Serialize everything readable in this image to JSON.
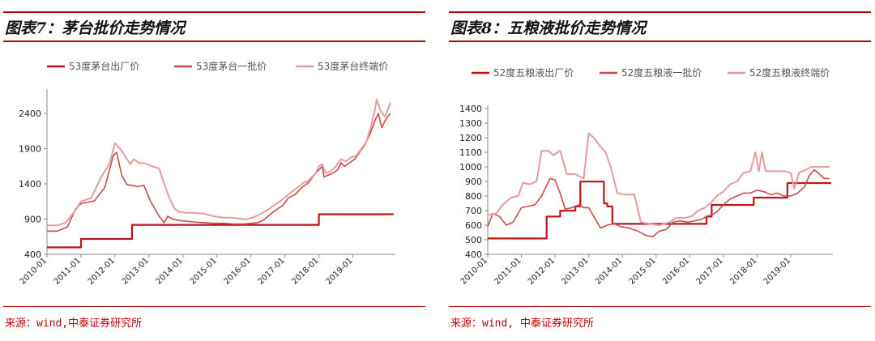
{
  "panels": [
    {
      "title": "图表7：茅台批价走势情况",
      "source": "来源：wind,中泰证券研究所"
    },
    {
      "title": "图表8：五粮液批价走势情况",
      "source": "来源：wind, 中泰证券研究所"
    }
  ],
  "chart_data": [
    {
      "type": "line",
      "title": "",
      "xlabel": "",
      "ylabel": "",
      "x_range": [
        2010.0,
        2020.25
      ],
      "ylim": [
        400,
        2700
      ],
      "yticks": [
        400,
        900,
        1400,
        1900,
        2400
      ],
      "xtick_labels": [
        "2010-01",
        "2011-01",
        "2012-01",
        "2013-01",
        "2014-01",
        "2015-01",
        "2016-01",
        "2017-01",
        "2018-01",
        "2019-01"
      ],
      "legend_position": "top",
      "grid": false,
      "series": [
        {
          "name": "53度茅台出厂价",
          "color": "#c0141a",
          "stroke_width": 2.2,
          "step": true,
          "points": [
            [
              2010.0,
              499
            ],
            [
              2011.0,
              619
            ],
            [
              2012.5,
              819
            ],
            [
              2018.0,
              969
            ],
            [
              2020.2,
              969
            ]
          ]
        },
        {
          "name": "53度茅台一批价",
          "color": "#cc4a4a",
          "stroke_width": 1.6,
          "step": false,
          "points": [
            [
              2010.0,
              730
            ],
            [
              2010.3,
              730
            ],
            [
              2010.6,
              790
            ],
            [
              2010.85,
              1050
            ],
            [
              2011.0,
              1120
            ],
            [
              2011.4,
              1160
            ],
            [
              2011.7,
              1350
            ],
            [
              2011.95,
              1800
            ],
            [
              2012.05,
              1850
            ],
            [
              2012.2,
              1520
            ],
            [
              2012.35,
              1390
            ],
            [
              2012.5,
              1380
            ],
            [
              2012.65,
              1360
            ],
            [
              2012.85,
              1380
            ],
            [
              2013.05,
              1150
            ],
            [
              2013.3,
              940
            ],
            [
              2013.45,
              850
            ],
            [
              2013.55,
              940
            ],
            [
              2013.7,
              900
            ],
            [
              2013.9,
              880
            ],
            [
              2014.1,
              870
            ],
            [
              2014.3,
              860
            ],
            [
              2014.6,
              850
            ],
            [
              2014.9,
              840
            ],
            [
              2015.2,
              840
            ],
            [
              2015.5,
              830
            ],
            [
              2015.8,
              830
            ],
            [
              2016.0,
              840
            ],
            [
              2016.2,
              850
            ],
            [
              2016.35,
              880
            ],
            [
              2016.5,
              940
            ],
            [
              2016.65,
              1000
            ],
            [
              2016.8,
              1050
            ],
            [
              2016.95,
              1100
            ],
            [
              2017.1,
              1200
            ],
            [
              2017.3,
              1250
            ],
            [
              2017.5,
              1350
            ],
            [
              2017.7,
              1420
            ],
            [
              2017.9,
              1550
            ],
            [
              2018.0,
              1600
            ],
            [
              2018.1,
              1650
            ],
            [
              2018.15,
              1500
            ],
            [
              2018.25,
              1520
            ],
            [
              2018.4,
              1550
            ],
            [
              2018.55,
              1600
            ],
            [
              2018.65,
              1700
            ],
            [
              2018.75,
              1650
            ],
            [
              2018.9,
              1700
            ],
            [
              2019.05,
              1750
            ],
            [
              2019.2,
              1850
            ],
            [
              2019.35,
              1950
            ],
            [
              2019.5,
              2100
            ],
            [
              2019.65,
              2300
            ],
            [
              2019.75,
              2400
            ],
            [
              2019.85,
              2200
            ],
            [
              2019.95,
              2300
            ],
            [
              2020.1,
              2400
            ]
          ]
        },
        {
          "name": "53度茅台终端价",
          "color": "#e89aa0",
          "stroke_width": 2.0,
          "step": false,
          "points": [
            [
              2010.0,
              810
            ],
            [
              2010.3,
              810
            ],
            [
              2010.55,
              850
            ],
            [
              2010.8,
              1000
            ],
            [
              2011.0,
              1150
            ],
            [
              2011.3,
              1200
            ],
            [
              2011.6,
              1500
            ],
            [
              2011.85,
              1700
            ],
            [
              2012.0,
              1980
            ],
            [
              2012.2,
              1870
            ],
            [
              2012.35,
              1750
            ],
            [
              2012.45,
              1680
            ],
            [
              2012.55,
              1750
            ],
            [
              2012.7,
              1700
            ],
            [
              2012.9,
              1690
            ],
            [
              2013.1,
              1650
            ],
            [
              2013.3,
              1620
            ],
            [
              2013.45,
              1400
            ],
            [
              2013.6,
              1200
            ],
            [
              2013.75,
              1050
            ],
            [
              2013.9,
              1000
            ],
            [
              2014.1,
              990
            ],
            [
              2014.3,
              990
            ],
            [
              2014.6,
              980
            ],
            [
              2014.9,
              940
            ],
            [
              2015.2,
              920
            ],
            [
              2015.5,
              920
            ],
            [
              2015.75,
              900
            ],
            [
              2015.9,
              900
            ],
            [
              2016.1,
              930
            ],
            [
              2016.35,
              990
            ],
            [
              2016.55,
              1050
            ],
            [
              2016.75,
              1120
            ],
            [
              2016.9,
              1170
            ],
            [
              2017.1,
              1250
            ],
            [
              2017.3,
              1320
            ],
            [
              2017.5,
              1400
            ],
            [
              2017.7,
              1450
            ],
            [
              2017.9,
              1550
            ],
            [
              2018.0,
              1650
            ],
            [
              2018.1,
              1680
            ],
            [
              2018.2,
              1550
            ],
            [
              2018.35,
              1580
            ],
            [
              2018.5,
              1650
            ],
            [
              2018.65,
              1750
            ],
            [
              2018.8,
              1720
            ],
            [
              2018.95,
              1780
            ],
            [
              2019.1,
              1800
            ],
            [
              2019.25,
              1900
            ],
            [
              2019.4,
              2000
            ],
            [
              2019.55,
              2250
            ],
            [
              2019.65,
              2450
            ],
            [
              2019.7,
              2600
            ],
            [
              2019.8,
              2450
            ],
            [
              2019.95,
              2350
            ],
            [
              2020.1,
              2550
            ]
          ]
        }
      ]
    },
    {
      "type": "line",
      "title": "",
      "xlabel": "",
      "ylabel": "",
      "x_range": [
        2010.0,
        2020.25
      ],
      "ylim": [
        400,
        1400
      ],
      "yticks": [
        400,
        500,
        600,
        700,
        800,
        900,
        1000,
        1100,
        1200,
        1300,
        1400
      ],
      "xtick_labels": [
        "2010-01",
        "2011-01",
        "2012-01",
        "2013-01",
        "2014-01",
        "2015-01",
        "2016-01",
        "2017-01",
        "2018-01",
        "2019-01"
      ],
      "legend_position": "top",
      "grid": false,
      "series": [
        {
          "name": "52度五粮液出厂价",
          "color": "#c0141a",
          "stroke_width": 2.2,
          "step": true,
          "points": [
            [
              2010.0,
              509
            ],
            [
              2011.75,
              659
            ],
            [
              2012.15,
              699
            ],
            [
              2012.6,
              729
            ],
            [
              2012.75,
              899
            ],
            [
              2013.45,
              749
            ],
            [
              2013.55,
              729
            ],
            [
              2013.7,
              609
            ],
            [
              2016.5,
              659
            ],
            [
              2016.65,
              739
            ],
            [
              2017.9,
              789
            ],
            [
              2018.9,
              889
            ],
            [
              2020.2,
              889
            ]
          ]
        },
        {
          "name": "52度五粮液一批价",
          "color": "#cc4a4a",
          "stroke_width": 1.6,
          "step": false,
          "points": [
            [
              2010.0,
              590
            ],
            [
              2010.15,
              680
            ],
            [
              2010.35,
              660
            ],
            [
              2010.55,
              600
            ],
            [
              2010.75,
              620
            ],
            [
              2011.0,
              720
            ],
            [
              2011.2,
              730
            ],
            [
              2011.4,
              740
            ],
            [
              2011.6,
              800
            ],
            [
              2011.85,
              920
            ],
            [
              2012.0,
              910
            ],
            [
              2012.15,
              820
            ],
            [
              2012.3,
              710
            ],
            [
              2012.5,
              720
            ],
            [
              2012.7,
              740
            ],
            [
              2012.85,
              720
            ],
            [
              2013.0,
              720
            ],
            [
              2013.15,
              660
            ],
            [
              2013.35,
              580
            ],
            [
              2013.55,
              600
            ],
            [
              2013.75,
              610
            ],
            [
              2013.95,
              590
            ],
            [
              2014.2,
              580
            ],
            [
              2014.45,
              560
            ],
            [
              2014.7,
              530
            ],
            [
              2014.9,
              520
            ],
            [
              2015.1,
              560
            ],
            [
              2015.3,
              570
            ],
            [
              2015.5,
              620
            ],
            [
              2015.7,
              630
            ],
            [
              2015.95,
              620
            ],
            [
              2016.15,
              630
            ],
            [
              2016.35,
              640
            ],
            [
              2016.5,
              660
            ],
            [
              2016.65,
              670
            ],
            [
              2016.8,
              690
            ],
            [
              2017.0,
              740
            ],
            [
              2017.2,
              780
            ],
            [
              2017.4,
              800
            ],
            [
              2017.6,
              820
            ],
            [
              2017.8,
              820
            ],
            [
              2018.0,
              840
            ],
            [
              2018.2,
              830
            ],
            [
              2018.4,
              810
            ],
            [
              2018.6,
              820
            ],
            [
              2018.8,
              800
            ],
            [
              2019.0,
              800
            ],
            [
              2019.2,
              820
            ],
            [
              2019.4,
              860
            ],
            [
              2019.55,
              940
            ],
            [
              2019.7,
              980
            ],
            [
              2019.85,
              950
            ],
            [
              2020.0,
              920
            ],
            [
              2020.15,
              920
            ]
          ]
        },
        {
          "name": "52度五粮液终端价",
          "color": "#e89aa0",
          "stroke_width": 2.0,
          "step": false,
          "points": [
            [
              2010.0,
              670
            ],
            [
              2010.25,
              680
            ],
            [
              2010.45,
              740
            ],
            [
              2010.7,
              790
            ],
            [
              2010.9,
              800
            ],
            [
              2011.05,
              890
            ],
            [
              2011.25,
              880
            ],
            [
              2011.45,
              900
            ],
            [
              2011.6,
              1110
            ],
            [
              2011.8,
              1110
            ],
            [
              2011.95,
              1080
            ],
            [
              2012.15,
              1110
            ],
            [
              2012.35,
              950
            ],
            [
              2012.6,
              950
            ],
            [
              2012.85,
              920
            ],
            [
              2013.0,
              1230
            ],
            [
              2013.15,
              1200
            ],
            [
              2013.35,
              1140
            ],
            [
              2013.5,
              1100
            ],
            [
              2013.65,
              1000
            ],
            [
              2013.85,
              820
            ],
            [
              2014.05,
              810
            ],
            [
              2014.35,
              810
            ],
            [
              2014.55,
              620
            ],
            [
              2014.8,
              610
            ],
            [
              2015.1,
              600
            ],
            [
              2015.4,
              620
            ],
            [
              2015.6,
              650
            ],
            [
              2015.85,
              650
            ],
            [
              2016.05,
              660
            ],
            [
              2016.25,
              700
            ],
            [
              2016.45,
              720
            ],
            [
              2016.65,
              760
            ],
            [
              2016.8,
              800
            ],
            [
              2017.0,
              830
            ],
            [
              2017.2,
              880
            ],
            [
              2017.4,
              900
            ],
            [
              2017.6,
              960
            ],
            [
              2017.8,
              970
            ],
            [
              2017.95,
              1100
            ],
            [
              2018.05,
              970
            ],
            [
              2018.15,
              1100
            ],
            [
              2018.25,
              970
            ],
            [
              2018.5,
              970
            ],
            [
              2018.8,
              970
            ],
            [
              2019.0,
              960
            ],
            [
              2019.1,
              850
            ],
            [
              2019.25,
              960
            ],
            [
              2019.45,
              980
            ],
            [
              2019.6,
              1000
            ],
            [
              2019.8,
              1000
            ],
            [
              2020.15,
              1000
            ]
          ]
        }
      ]
    }
  ]
}
